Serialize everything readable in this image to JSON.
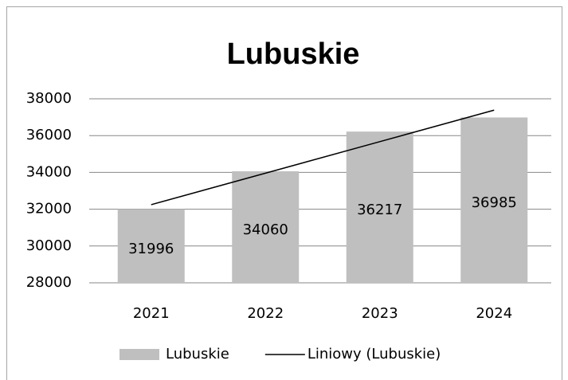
{
  "chart_data": {
    "type": "bar",
    "title": "Lubuskie",
    "categories": [
      "2021",
      "2022",
      "2023",
      "2024"
    ],
    "series": [
      {
        "name": "Lubuskie",
        "type": "bar",
        "color": "#bfbfbf",
        "values": [
          31996,
          34060,
          36217,
          36985
        ]
      },
      {
        "name": "Liniowy (Lubuskie)",
        "type": "line",
        "color": "#000000",
        "values": [
          32246,
          33958,
          35671,
          37383
        ]
      }
    ],
    "ylim": [
      28000,
      38000
    ],
    "yticks": [
      28000,
      30000,
      32000,
      34000,
      36000,
      38000
    ],
    "grid": true,
    "legend": "bottom"
  }
}
